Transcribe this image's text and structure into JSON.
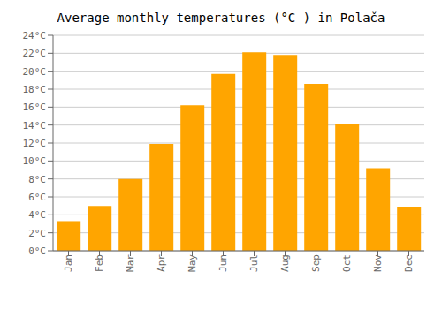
{
  "chart_data": {
    "type": "bar",
    "title": "Average monthly temperatures (°C ) in Polača",
    "categories": [
      "Jan",
      "Feb",
      "Mar",
      "Apr",
      "May",
      "Jun",
      "Jul",
      "Aug",
      "Sep",
      "Oct",
      "Nov",
      "Dec"
    ],
    "values": [
      3.3,
      5.0,
      8.0,
      11.9,
      16.2,
      19.7,
      22.1,
      21.8,
      18.6,
      14.1,
      9.2,
      4.9
    ],
    "color": "#FFA500",
    "ylim": [
      0,
      24
    ],
    "yticks": [
      {
        "value": 0,
        "label": "0°C"
      },
      {
        "value": 2,
        "label": "2°C"
      },
      {
        "value": 4,
        "label": "4°C"
      },
      {
        "value": 6,
        "label": "6°C"
      },
      {
        "value": 8,
        "label": "8°C"
      },
      {
        "value": 10,
        "label": "10°C"
      },
      {
        "value": 12,
        "label": "12°C"
      },
      {
        "value": 14,
        "label": "14°C"
      },
      {
        "value": 16,
        "label": "16°C"
      },
      {
        "value": 18,
        "label": "18°C"
      },
      {
        "value": 20,
        "label": "20°C"
      },
      {
        "value": 22,
        "label": "22°C"
      },
      {
        "value": 24,
        "label": "24°C"
      }
    ],
    "grid": true
  }
}
